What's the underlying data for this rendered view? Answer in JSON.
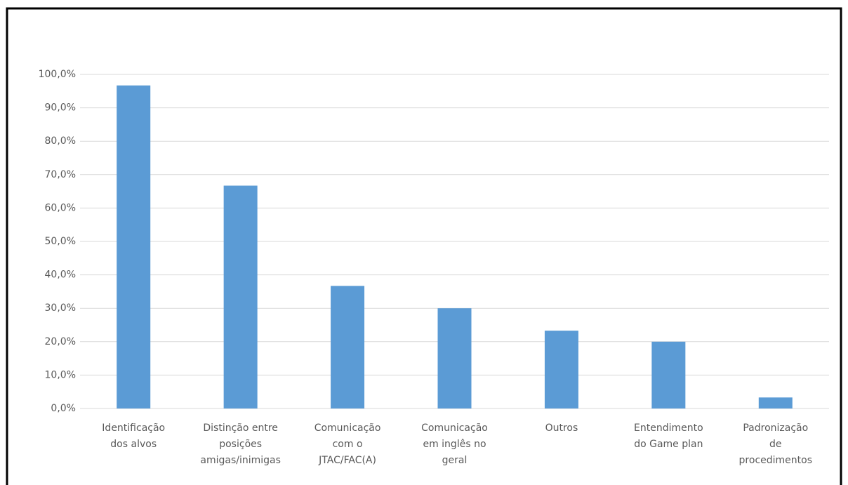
{
  "chart_data": {
    "type": "bar",
    "categories": [
      "Identificação\ndos alvos",
      "Distinção entre\nposições\namigas/inimigas",
      "Comunicação\ncom o\nJTAC/FAC(A)",
      "Comunicação\nem inglês no\ngeral",
      "Outros",
      "Entendimento\ndo Game plan",
      "Padronização\nde\nprocedimentos"
    ],
    "values": [
      96.7,
      66.7,
      36.7,
      30.0,
      23.3,
      20.0,
      3.3
    ],
    "color": "#5b9bd5",
    "ylim": [
      0,
      100
    ],
    "yticks": [
      {
        "value": 0,
        "label": "0,0%"
      },
      {
        "value": 10,
        "label": "10,0%"
      },
      {
        "value": 20,
        "label": "20,0%"
      },
      {
        "value": 30,
        "label": "30,0%"
      },
      {
        "value": 40,
        "label": "40,0%"
      },
      {
        "value": 50,
        "label": "50,0%"
      },
      {
        "value": 60,
        "label": "60,0%"
      },
      {
        "value": 70,
        "label": "70,0%"
      },
      {
        "value": 80,
        "label": "80,0%"
      },
      {
        "value": 90,
        "label": "90,0%"
      },
      {
        "value": 100,
        "label": "100,0%"
      }
    ],
    "grid": true
  }
}
